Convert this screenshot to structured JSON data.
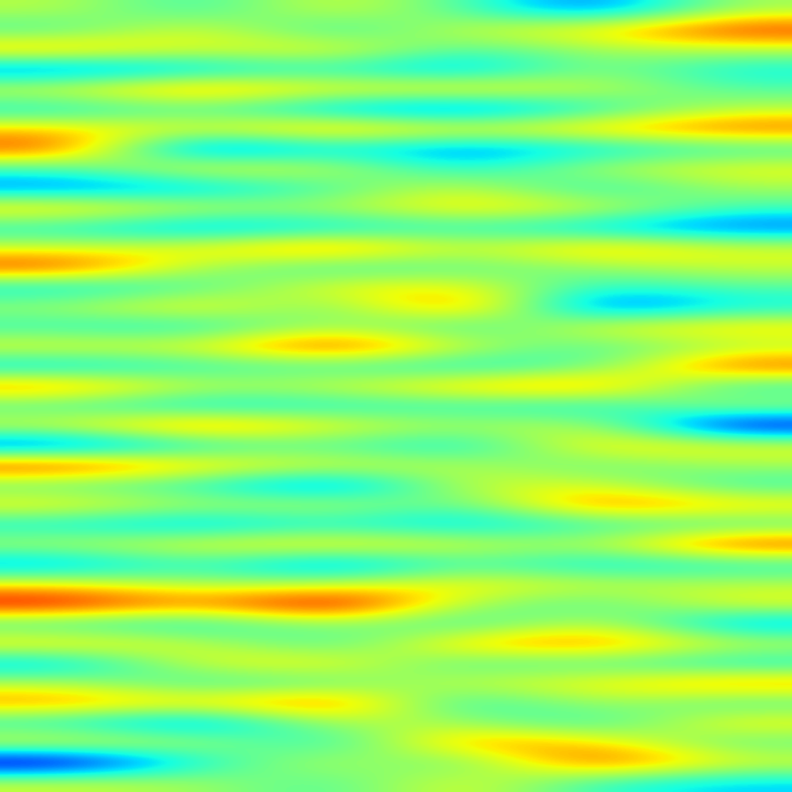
{
  "chart_data": {
    "type": "heatmap",
    "tick_labels": false,
    "cells": [
      [
        0.3,
        -0.4,
        0.5,
        -0.2,
        -1.2,
        0.2
      ],
      [
        -0.3,
        0.6,
        -0.5,
        0.4,
        0.7,
        1.5
      ],
      [
        1.0,
        0.4,
        0.7,
        -0.3,
        0.2,
        0.3
      ],
      [
        -1.2,
        -0.8,
        -0.4,
        -1.0,
        0.1,
        -0.6
      ],
      [
        0.5,
        1.2,
        0.6,
        0.8,
        0.4,
        -0.2
      ],
      [
        -0.6,
        -0.2,
        -0.9,
        -1.3,
        -0.5,
        0.3
      ],
      [
        0.8,
        0.5,
        1.1,
        0.6,
        0.9,
        1.3
      ],
      [
        1.4,
        -1.5,
        -0.6,
        -1.1,
        -0.7,
        -0.4
      ],
      [
        -0.3,
        0.7,
        0.4,
        -0.6,
        0.3,
        0.6
      ],
      [
        -1.1,
        -0.9,
        -0.3,
        0.5,
        -0.6,
        0.2
      ],
      [
        0.9,
        0.4,
        0.2,
        0.8,
        0.5,
        -0.3
      ],
      [
        -0.5,
        -1.0,
        -0.7,
        -0.4,
        -0.8,
        -1.2
      ],
      [
        0.4,
        0.6,
        1.3,
        0.3,
        1.0,
        0.5
      ],
      [
        1.5,
        0.2,
        -0.4,
        -0.2,
        0.1,
        0.4
      ],
      [
        -0.7,
        -0.3,
        0.6,
        0.7,
        -0.5,
        -0.2
      ],
      [
        0.2,
        0.8,
        -0.2,
        1.4,
        -1.4,
        -0.6
      ],
      [
        -0.4,
        -0.6,
        0.3,
        -0.5,
        0.6,
        0.8
      ],
      [
        0.6,
        0.5,
        1.6,
        0.4,
        -0.3,
        0.2
      ],
      [
        -0.8,
        -0.4,
        -0.3,
        -0.6,
        -0.2,
        1.4
      ],
      [
        1.2,
        0.3,
        0.4,
        0.9,
        1.2,
        -0.5
      ],
      [
        -0.3,
        -0.7,
        -0.5,
        -0.4,
        -0.6,
        0.3
      ],
      [
        0.5,
        1.3,
        0.6,
        0.2,
        0.4,
        -1.8
      ],
      [
        -1.4,
        -0.5,
        -0.2,
        -0.7,
        0.8,
        0.6
      ],
      [
        1.6,
        0.8,
        0.5,
        0.3,
        -0.2,
        0.2
      ],
      [
        -0.2,
        -0.4,
        -1.3,
        0.4,
        0.5,
        -0.4
      ],
      [
        0.7,
        0.2,
        0.4,
        -0.3,
        1.3,
        0.8
      ],
      [
        -0.6,
        -0.9,
        -0.5,
        -0.8,
        -0.4,
        -0.3
      ],
      [
        0.3,
        0.6,
        0.8,
        0.5,
        0.2,
        1.5
      ],
      [
        -1.0,
        -0.3,
        -1.2,
        -0.2,
        -0.7,
        -0.5
      ],
      [
        0.6,
        0.2,
        0.3,
        0.7,
        0.4,
        0.3
      ],
      [
        1.8,
        1.0,
        2.0,
        0.2,
        -0.3,
        0.6
      ],
      [
        -0.4,
        -0.6,
        0.2,
        -0.5,
        0.5,
        -1.0
      ],
      [
        0.8,
        0.4,
        -0.4,
        0.9,
        1.2,
        0.4
      ],
      [
        -0.9,
        0.5,
        0.7,
        -0.3,
        -0.2,
        -0.6
      ],
      [
        0.3,
        -0.4,
        -0.2,
        0.4,
        0.6,
        1.1
      ],
      [
        1.1,
        0.7,
        1.4,
        -0.6,
        0.3,
        -0.3
      ],
      [
        -0.5,
        -1.2,
        0.3,
        0.2,
        -0.5,
        0.7
      ],
      [
        0.6,
        0.3,
        -0.6,
        1.1,
        0.8,
        -0.2
      ],
      [
        -2.0,
        -0.5,
        0.4,
        -0.3,
        1.5,
        0.5
      ],
      [
        0.4,
        0.2,
        -0.3,
        0.6,
        -0.4,
        -0.7
      ]
    ]
  }
}
